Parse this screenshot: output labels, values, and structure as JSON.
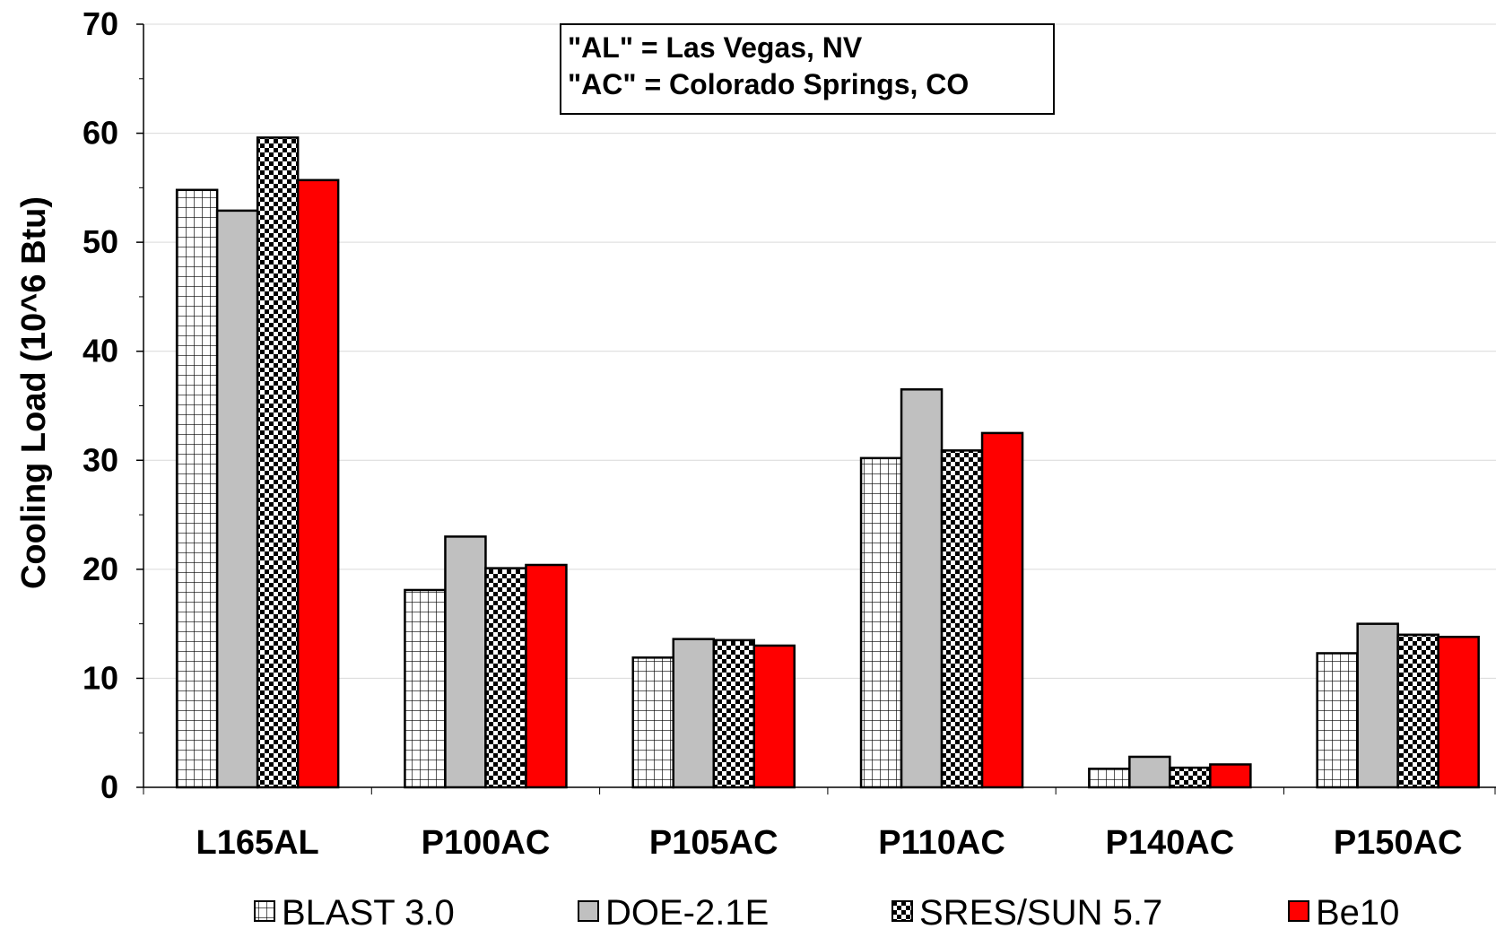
{
  "chart_data": {
    "type": "bar",
    "categories": [
      "L165AL",
      "P100AC",
      "P105AC",
      "P110AC",
      "P140AC",
      "P150AC"
    ],
    "series": [
      {
        "name": "BLAST 3.0",
        "values": [
          54.8,
          18.1,
          11.9,
          30.2,
          1.7,
          12.3
        ],
        "fill": "grid"
      },
      {
        "name": "DOE-2.1E",
        "values": [
          52.9,
          23.0,
          13.6,
          36.5,
          2.8,
          15.0
        ],
        "fill": "#c0c0c0"
      },
      {
        "name": "SRES/SUN 5.7",
        "values": [
          59.6,
          20.1,
          13.5,
          30.9,
          1.8,
          14.0
        ],
        "fill": "checker"
      },
      {
        "name": "Be10",
        "values": [
          55.7,
          20.4,
          13.0,
          32.5,
          2.1,
          13.8
        ],
        "fill": "#ff0000"
      }
    ],
    "xlabel": "",
    "ylabel": "Cooling Load (10^6 Btu)",
    "ylim": [
      0,
      70
    ],
    "yticks": [
      "0",
      "10",
      "20",
      "30",
      "40",
      "50",
      "60",
      "70"
    ],
    "grid": true,
    "legend_position": "bottom",
    "annotation": [
      "\"AL\" = Las Vegas, NV",
      "\"AC\" = Colorado Springs, CO"
    ]
  }
}
